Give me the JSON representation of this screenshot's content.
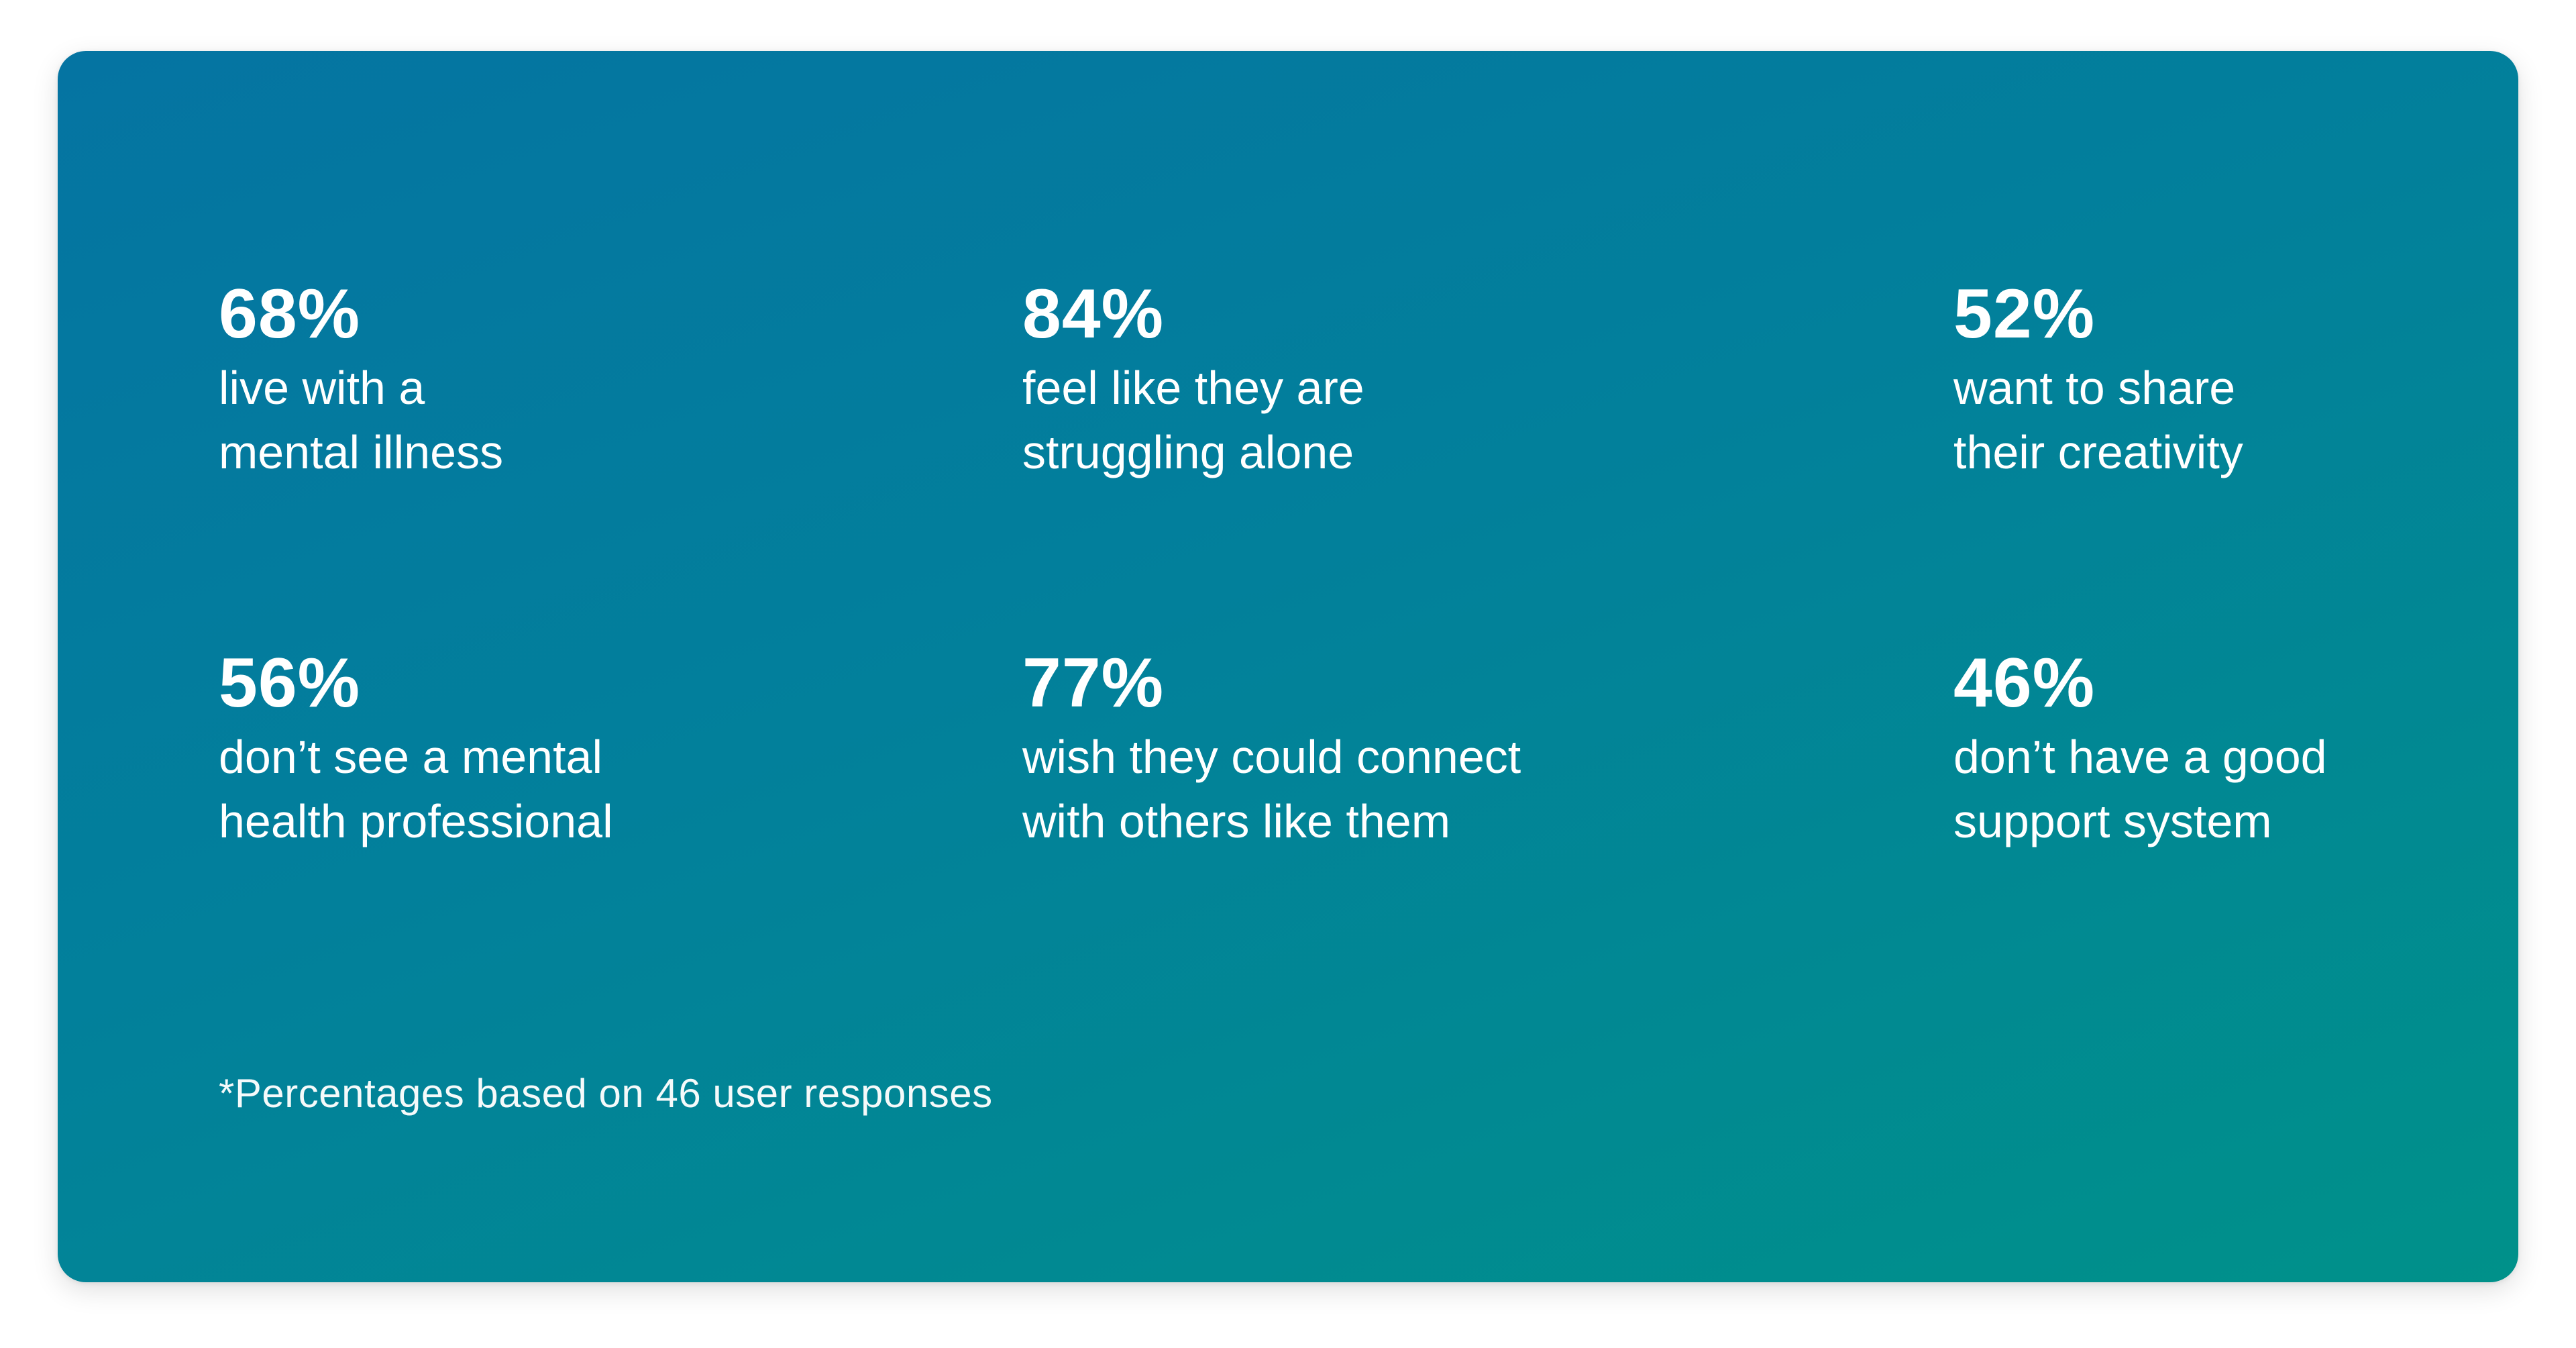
{
  "stats": [
    {
      "value": "68%",
      "description": "live with a\nmental illness"
    },
    {
      "value": "84%",
      "description": "feel like they are\nstruggling alone"
    },
    {
      "value": "52%",
      "description": "want to share\ntheir creativity"
    },
    {
      "value": "56%",
      "description": "don’t see a mental\nhealth professional"
    },
    {
      "value": "77%",
      "description": "wish they could connect\nwith others like them"
    },
    {
      "value": "46%",
      "description": "don’t have a good\nsupport system"
    }
  ],
  "footnote": "*Percentages based on 46 user responses",
  "colors": {
    "gradient_start": "#0574a2",
    "gradient_mid": "#02809b",
    "gradient_end": "#00918a",
    "text": "#ffffff"
  }
}
